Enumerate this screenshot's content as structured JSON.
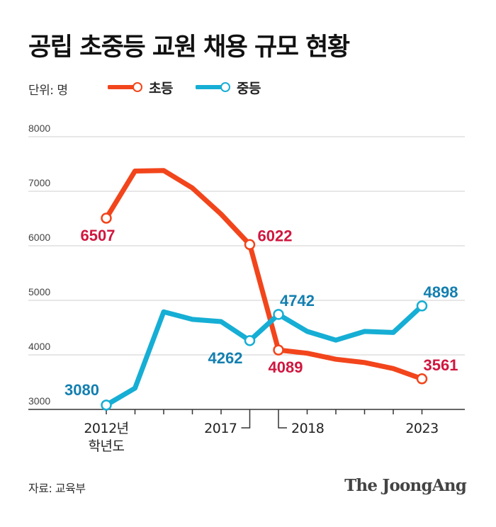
{
  "title": "공립 초중등 교원 채용 규모 현황",
  "unit_label": "단위: 명",
  "source": "자료: 교육부",
  "logo_text": "The JoongAng",
  "colors": {
    "elementary": "#f2451c",
    "secondary": "#16aed4",
    "elementary_label": "#d0173f",
    "secondary_label": "#137fb0",
    "grid": "#cfcfcf",
    "axis": "#333333"
  },
  "chart_data": {
    "type": "line",
    "title": "공립 초중등 교원 채용 규모 현황",
    "ylabel": "단위: 명",
    "ylim": [
      3000,
      8000
    ],
    "yticks": [
      3000,
      4000,
      5000,
      6000,
      7000,
      8000
    ],
    "x": [
      2012,
      2013,
      2014,
      2015,
      2016,
      2017,
      2017.5,
      2018,
      2019,
      2020,
      2021,
      2022,
      2023
    ],
    "x_tick_labels": [
      {
        "x": 2012,
        "lines": [
          "2012년",
          "학년도"
        ]
      },
      {
        "x": 2017,
        "lines": [
          "2017"
        ]
      },
      {
        "x": 2018,
        "lines": [
          "2018"
        ]
      },
      {
        "x": 2023,
        "lines": [
          "2023"
        ]
      }
    ],
    "grid": true,
    "legend_position": "top-left",
    "series": [
      {
        "name": "초등",
        "color": "#f2451c",
        "values": [
          6507,
          7370,
          7380,
          7060,
          6580,
          6022,
          null,
          4089,
          4030,
          3920,
          3860,
          3750,
          3561
        ],
        "labels": [
          {
            "x": 2012,
            "text": "6507",
            "pos": "below"
          },
          {
            "x": 2017,
            "text": "6022",
            "pos": "right"
          },
          {
            "x": 2018,
            "text": "4089",
            "pos": "below"
          },
          {
            "x": 2023,
            "text": "3561",
            "pos": "above-right"
          }
        ]
      },
      {
        "name": "중등",
        "color": "#16aed4",
        "values": [
          3080,
          3390,
          4790,
          4650,
          4610,
          4262,
          null,
          4742,
          4430,
          4270,
          4430,
          4410,
          4898
        ],
        "labels": [
          {
            "x": 2012,
            "text": "3080",
            "pos": "above-left"
          },
          {
            "x": 2017,
            "text": "4262",
            "pos": "below-left"
          },
          {
            "x": 2018,
            "text": "4742",
            "pos": "above-right"
          },
          {
            "x": 2023,
            "text": "4898",
            "pos": "above-right"
          }
        ]
      }
    ]
  }
}
